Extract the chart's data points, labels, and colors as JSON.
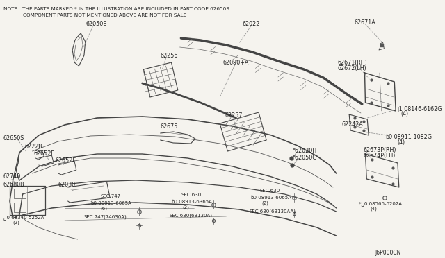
{
  "bg_color": "#f5f3ee",
  "line_color": "#555555",
  "dark_line": "#333333",
  "text_color": "#222222",
  "note_line1": "NOTE : THE PARTS MARKED * IN THE ILLUSTRATION ARE INCLUDED IN PART CODE 62650S",
  "note_line2": "COMPONENT PARTS NOT MENTIONED ABOVE ARE NOT FOR SALE",
  "diagram_id": "J6P000CN",
  "font_note": 5.2,
  "font_label": 5.8,
  "font_small": 5.0
}
